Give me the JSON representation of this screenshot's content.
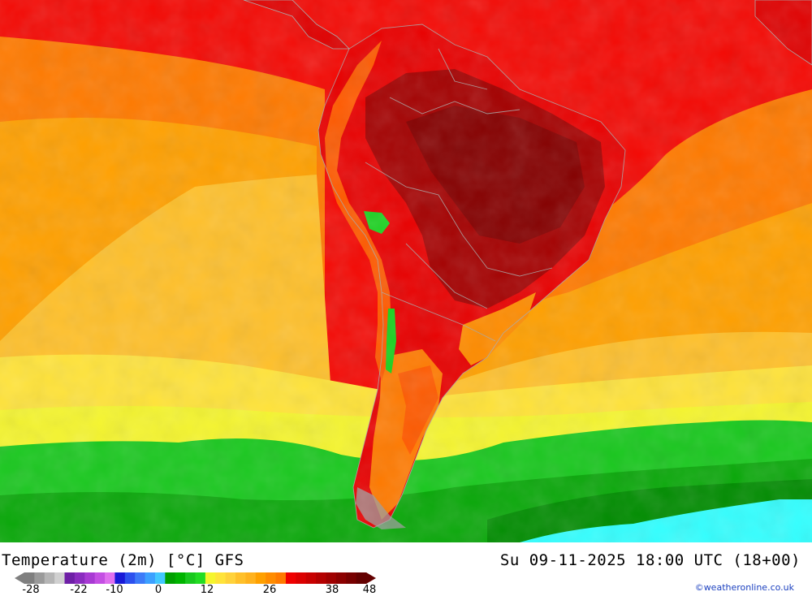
{
  "map": {
    "region": "South America",
    "palette": {
      "ocean_far_north": "#f40a05",
      "tropics": "#ee0000",
      "warm_ocean": "#ff7a00",
      "mid_ocean": "#ffa000",
      "subtropic_ocean": "#ffc02a",
      "cool_ocean": "#ffe33a",
      "frontal_yellow": "#f5f52e",
      "southern_green": "#19c81e",
      "deep_green": "#008c00",
      "cold_cyan": "#33ffff",
      "continent_hot": "#a40000",
      "continent_hottest": "#850000",
      "andes_cool": "#ff5a00",
      "highland_green": "#19d21e",
      "border_gray": "#aaaaaa"
    }
  },
  "header": {
    "title": "Temperature (2m) [°C] GFS",
    "datetime": "Su 09-11-2025 18:00 UTC (18+00)"
  },
  "legend": {
    "colors": [
      "#7f7f7f",
      "#9a9a9a",
      "#b5b5b5",
      "#d0d0d0",
      "#6e1fa6",
      "#8a2bbf",
      "#a83ad3",
      "#c44fe3",
      "#e070ef",
      "#1919d7",
      "#2c50ee",
      "#3c7af8",
      "#3ca0ff",
      "#43c8ff",
      "#00a000",
      "#00b400",
      "#19c81e",
      "#23dc23",
      "#f5f52e",
      "#ffe33a",
      "#ffd23a",
      "#ffc02a",
      "#ffb21e",
      "#ffa000",
      "#ff8c00",
      "#ff7a00",
      "#f00000",
      "#dc0000",
      "#c80000",
      "#b40000",
      "#a00000",
      "#8c0000",
      "#780000",
      "#640000"
    ],
    "ticks": [
      "-28",
      "-22",
      "-10",
      "0",
      "12",
      "26",
      "38",
      "48"
    ]
  },
  "credit": "©weatheronline.co.uk"
}
